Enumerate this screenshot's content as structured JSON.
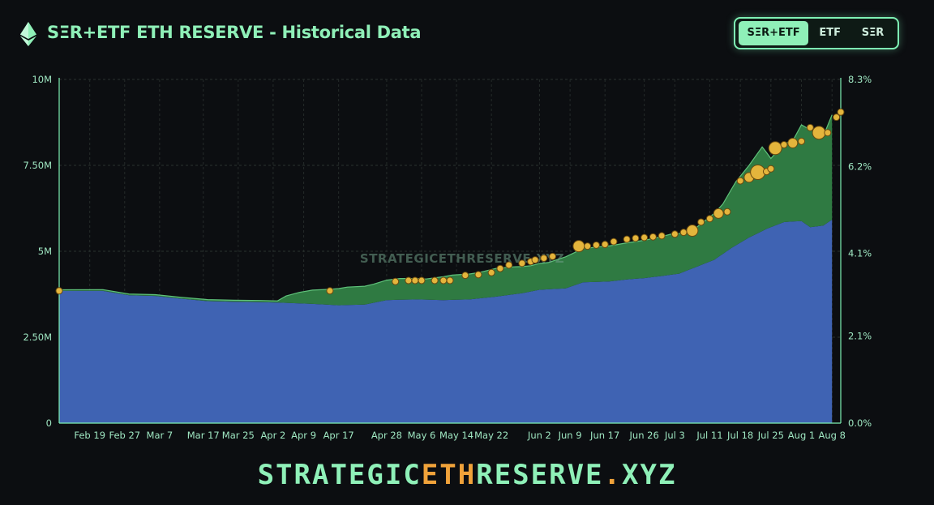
{
  "header": {
    "title": "SΞR+ETF ETH RESERVE - Historical Data",
    "logo_icon": "ethereum-icon"
  },
  "toggle": {
    "options": [
      "SΞR+ETF",
      "ETF",
      "SΞR"
    ],
    "selected": "SΞR+ETF"
  },
  "watermark": "STRATEGICETHRESERVE.XYZ",
  "footer": {
    "brand_part1": "STRATEGIC",
    "brand_accent": "ETH",
    "brand_part2": "RESERVE",
    "brand_dot": ".",
    "brand_part3": "XYZ"
  },
  "colors": {
    "etf_area": "#3f63b3",
    "ser_area": "#2f7a42",
    "ser_line": "#5fc27a",
    "etf_line": "#7fa0e0",
    "markers": "#e4b53c",
    "axis": "#7ef1b4",
    "accent": "#f0a23a"
  },
  "chart_data": {
    "type": "area",
    "stacked": true,
    "x_start": "Feb 12",
    "x_end": "Aug 8",
    "y_left": {
      "min": 0,
      "max": 10000000,
      "ticks": [
        0,
        2500000,
        5000000,
        7500000,
        10000000
      ],
      "tick_labels": [
        "0",
        "2.50M",
        "5M",
        "7.50M",
        "10M"
      ]
    },
    "y_right": {
      "min": 0,
      "max": 8.3,
      "ticks": [
        0,
        2.1,
        4.1,
        6.2,
        8.3
      ],
      "tick_labels": [
        "0.0%",
        "2.1%",
        "4.1%",
        "6.2%",
        "8.3%"
      ]
    },
    "x_ticks": [
      {
        "day": 7,
        "label": "Feb 19"
      },
      {
        "day": 15,
        "label": "Feb 27"
      },
      {
        "day": 23,
        "label": "Mar 7"
      },
      {
        "day": 33,
        "label": "Mar 17"
      },
      {
        "day": 41,
        "label": "Mar 25"
      },
      {
        "day": 49,
        "label": "Apr 2"
      },
      {
        "day": 56,
        "label": "Apr 9"
      },
      {
        "day": 64,
        "label": "Apr 17"
      },
      {
        "day": 75,
        "label": "Apr 28"
      },
      {
        "day": 83,
        "label": "May 6"
      },
      {
        "day": 91,
        "label": "May 14"
      },
      {
        "day": 99,
        "label": "May 22"
      },
      {
        "day": 110,
        "label": "Jun 2"
      },
      {
        "day": 117,
        "label": "Jun 9"
      },
      {
        "day": 125,
        "label": "Jun 17"
      },
      {
        "day": 134,
        "label": "Jun 26"
      },
      {
        "day": 141,
        "label": "Jul 3"
      },
      {
        "day": 149,
        "label": "Jul 11"
      },
      {
        "day": 156,
        "label": "Jul 18"
      },
      {
        "day": 163,
        "label": "Jul 25"
      },
      {
        "day": 170,
        "label": "Aug 1"
      },
      {
        "day": 177,
        "label": "Aug 8"
      }
    ],
    "series": [
      {
        "key": "etf",
        "points": [
          [
            0,
            3.85
          ],
          [
            10,
            3.85
          ],
          [
            16,
            3.72
          ],
          [
            22,
            3.7
          ],
          [
            28,
            3.62
          ],
          [
            34,
            3.55
          ],
          [
            40,
            3.53
          ],
          [
            46,
            3.52
          ],
          [
            52,
            3.5
          ],
          [
            58,
            3.47
          ],
          [
            64,
            3.43
          ],
          [
            70,
            3.45
          ],
          [
            75,
            3.58
          ],
          [
            82,
            3.6
          ],
          [
            88,
            3.58
          ],
          [
            94,
            3.6
          ],
          [
            100,
            3.68
          ],
          [
            106,
            3.78
          ],
          [
            110,
            3.88
          ],
          [
            116,
            3.92
          ],
          [
            120,
            4.1
          ],
          [
            126,
            4.12
          ],
          [
            130,
            4.18
          ],
          [
            134,
            4.22
          ],
          [
            138,
            4.28
          ],
          [
            142,
            4.35
          ],
          [
            146,
            4.55
          ],
          [
            150,
            4.75
          ],
          [
            154,
            5.1
          ],
          [
            158,
            5.4
          ],
          [
            162,
            5.65
          ],
          [
            166,
            5.85
          ],
          [
            170,
            5.88
          ],
          [
            172,
            5.7
          ],
          [
            175,
            5.75
          ],
          [
            177,
            5.92
          ]
        ]
      },
      {
        "key": "ser",
        "points": [
          [
            0,
            0.03
          ],
          [
            50,
            0.05
          ],
          [
            52,
            0.2
          ],
          [
            55,
            0.32
          ],
          [
            58,
            0.4
          ],
          [
            62,
            0.45
          ],
          [
            66,
            0.52
          ],
          [
            72,
            0.54
          ],
          [
            78,
            0.62
          ],
          [
            84,
            0.6
          ],
          [
            90,
            0.72
          ],
          [
            96,
            0.75
          ],
          [
            100,
            0.82
          ],
          [
            104,
            0.8
          ],
          [
            108,
            0.75
          ],
          [
            112,
            0.78
          ],
          [
            116,
            0.92
          ],
          [
            120,
            0.98
          ],
          [
            124,
            1.02
          ],
          [
            128,
            1.05
          ],
          [
            132,
            1.08
          ],
          [
            136,
            1.12
          ],
          [
            140,
            1.18
          ],
          [
            144,
            1.15
          ],
          [
            146,
            1.15
          ],
          [
            148,
            1.25
          ],
          [
            150,
            1.35
          ],
          [
            152,
            1.45
          ],
          [
            155,
            1.85
          ],
          [
            158,
            2.1
          ],
          [
            161,
            2.45
          ],
          [
            163,
            2.0
          ],
          [
            166,
            2.28
          ],
          [
            168,
            2.35
          ],
          [
            170,
            2.8
          ],
          [
            173,
            2.85
          ],
          [
            175,
            2.6
          ],
          [
            177,
            3.05
          ]
        ]
      }
    ],
    "markers": [
      [
        0,
        3.85,
        4
      ],
      [
        62,
        3.85,
        4
      ],
      [
        77,
        4.12,
        4
      ],
      [
        80,
        4.15,
        4
      ],
      [
        81.5,
        4.15,
        4
      ],
      [
        83,
        4.15,
        4
      ],
      [
        86,
        4.15,
        4
      ],
      [
        88,
        4.15,
        4
      ],
      [
        89.5,
        4.15,
        4
      ],
      [
        93,
        4.3,
        4
      ],
      [
        96,
        4.32,
        4
      ],
      [
        99,
        4.38,
        4
      ],
      [
        101,
        4.5,
        4
      ],
      [
        103,
        4.6,
        4
      ],
      [
        106,
        4.65,
        4
      ],
      [
        108,
        4.7,
        4
      ],
      [
        109,
        4.75,
        4
      ],
      [
        111,
        4.8,
        4
      ],
      [
        113,
        4.85,
        4
      ],
      [
        119,
        5.15,
        7
      ],
      [
        121,
        5.15,
        4
      ],
      [
        123,
        5.18,
        4
      ],
      [
        125,
        5.2,
        4
      ],
      [
        127,
        5.28,
        4
      ],
      [
        130,
        5.35,
        4
      ],
      [
        132,
        5.38,
        4
      ],
      [
        134,
        5.4,
        4
      ],
      [
        136,
        5.42,
        4
      ],
      [
        138,
        5.45,
        4
      ],
      [
        141,
        5.5,
        4
      ],
      [
        143,
        5.55,
        4
      ],
      [
        145,
        5.6,
        7
      ],
      [
        147,
        5.85,
        4
      ],
      [
        149,
        5.95,
        4
      ],
      [
        151,
        6.1,
        6
      ],
      [
        153,
        6.15,
        4
      ],
      [
        156,
        7.05,
        4
      ],
      [
        158,
        7.15,
        6
      ],
      [
        160,
        7.3,
        9
      ],
      [
        162,
        7.32,
        4
      ],
      [
        163,
        7.4,
        4
      ],
      [
        164,
        8.0,
        8
      ],
      [
        166,
        8.1,
        4
      ],
      [
        168,
        8.15,
        6
      ],
      [
        170,
        8.2,
        4
      ],
      [
        172,
        8.6,
        4
      ],
      [
        174,
        8.45,
        8
      ],
      [
        176,
        8.45,
        4
      ],
      [
        178,
        8.9,
        4
      ],
      [
        179,
        9.05,
        4
      ]
    ]
  }
}
